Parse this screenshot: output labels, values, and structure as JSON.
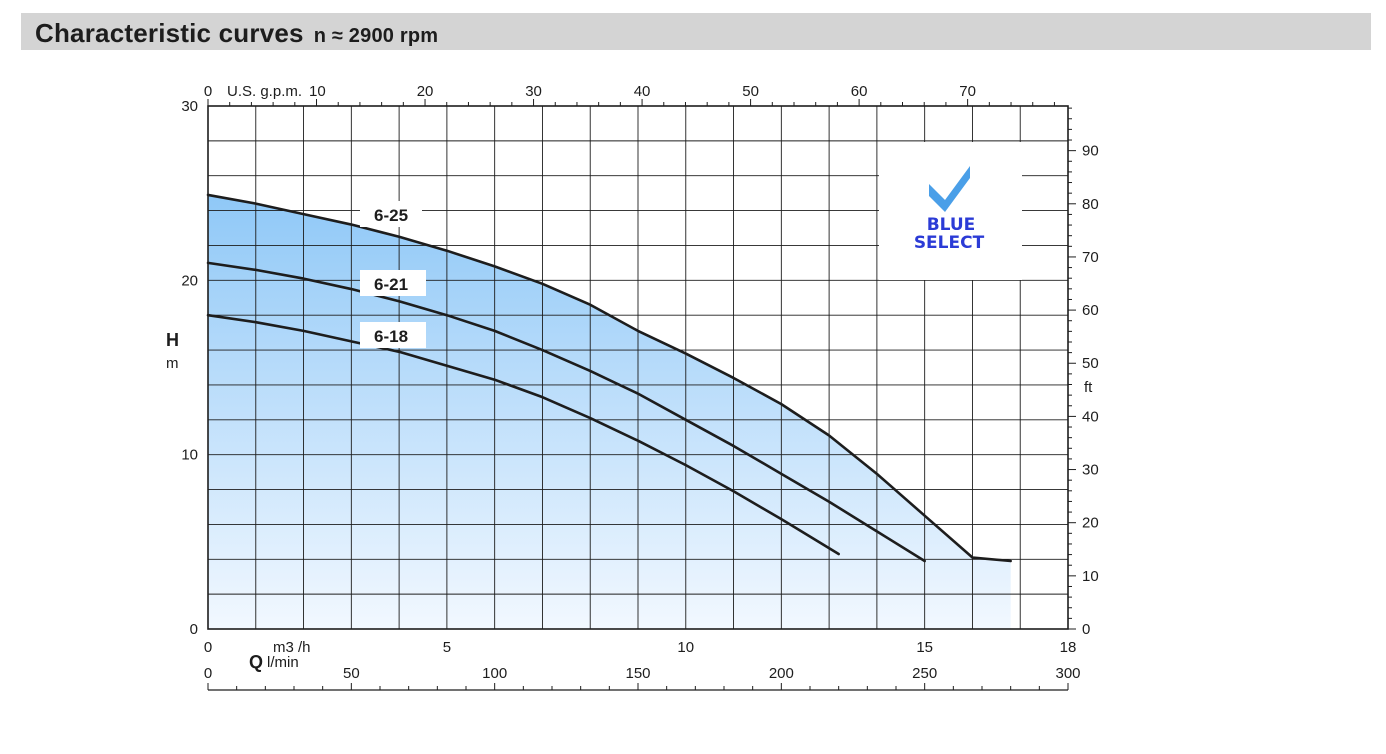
{
  "header": {
    "title": "Characteristic curves",
    "speed": "n ≈ 2900 rpm"
  },
  "badge": {
    "line1": "BLUE",
    "line2": "SELECT",
    "icon": "checkmark-icon",
    "check_color": "#4a9fe8",
    "text_color": "#2b3bd6"
  },
  "colors": {
    "area_top": "#8fc8f7",
    "area_bottom": "#f2f8ff",
    "curve": "#1d1d1d",
    "grid": "#1d1d1d",
    "header_bg": "#d4d4d4"
  },
  "chart_data": {
    "type": "line",
    "title": "Characteristic curves",
    "xlabel": "Q",
    "ylabel": "H",
    "x_unit": "m3 /h",
    "x2_unit": "l/min",
    "x3_unit": "U.S. g.p.m.",
    "y_unit": "m",
    "y2_unit": "ft",
    "xlim": [
      0,
      18
    ],
    "ylim": [
      0,
      30
    ],
    "x2lim": [
      0,
      300
    ],
    "x3lim": [
      0,
      79.25
    ],
    "y2lim": [
      0,
      98.4
    ],
    "x_ticks": [
      0,
      5,
      10,
      15,
      18
    ],
    "x2_ticks": [
      0,
      50,
      100,
      150,
      200,
      250,
      300
    ],
    "x3_ticks": [
      0,
      10,
      20,
      30,
      40,
      50,
      60,
      70
    ],
    "y_ticks": [
      0,
      10,
      20,
      30
    ],
    "y2_ticks": [
      0,
      10,
      20,
      30,
      40,
      50,
      60,
      70,
      80,
      90
    ],
    "grid": true,
    "shaded_area": true,
    "series": [
      {
        "name": "6-25",
        "x": [
          0,
          1,
          2,
          3,
          4,
          5,
          6,
          7,
          8,
          9,
          10,
          11,
          12,
          13,
          14,
          15,
          16,
          16.8
        ],
        "y": [
          24.9,
          24.4,
          23.8,
          23.2,
          22.5,
          21.7,
          20.8,
          19.8,
          18.6,
          17.1,
          15.8,
          14.4,
          12.9,
          11.1,
          8.9,
          6.5,
          4.1,
          3.9
        ]
      },
      {
        "name": "6-21",
        "x": [
          0,
          1,
          2,
          3,
          4,
          5,
          6,
          7,
          8,
          9,
          10,
          11,
          12,
          13,
          14,
          15
        ],
        "y": [
          21.0,
          20.6,
          20.1,
          19.5,
          18.8,
          18.0,
          17.1,
          16.0,
          14.8,
          13.5,
          12.0,
          10.5,
          8.9,
          7.3,
          5.6,
          3.9
        ]
      },
      {
        "name": "6-18",
        "x": [
          0,
          1,
          2,
          3,
          4,
          5,
          6,
          7,
          8,
          9,
          10,
          11,
          12,
          13.2
        ],
        "y": [
          18.0,
          17.6,
          17.1,
          16.5,
          15.9,
          15.1,
          14.3,
          13.3,
          12.1,
          10.8,
          9.4,
          7.9,
          6.3,
          4.3
        ]
      }
    ]
  }
}
